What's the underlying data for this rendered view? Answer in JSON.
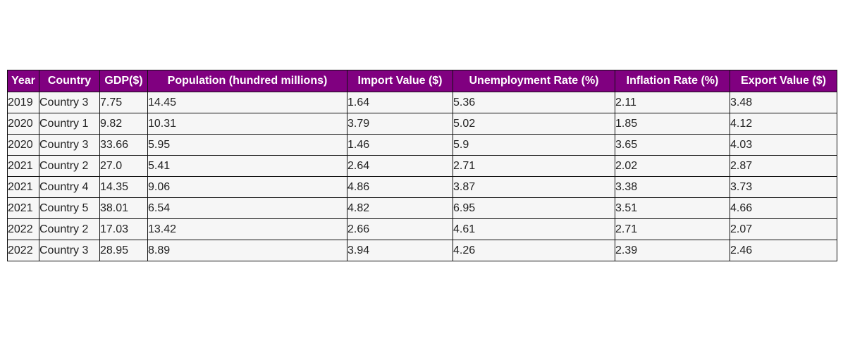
{
  "colors": {
    "header_bg": "#800080",
    "header_text": "#ffffff",
    "cell_bg": "#f6f6f6",
    "cell_text": "#222222",
    "border": "#111111"
  },
  "chart_data": {
    "type": "table",
    "columns": [
      "Year",
      "Country",
      "GDP($)",
      "Population (hundred millions)",
      "Import Value ($)",
      "Unemployment Rate (%)",
      "Inflation Rate (%)",
      "Export Value ($)"
    ],
    "rows": [
      [
        "2019",
        "Country 3",
        "7.75",
        "14.45",
        "1.64",
        "5.36",
        "2.11",
        "3.48"
      ],
      [
        "2020",
        "Country 1",
        "9.82",
        "10.31",
        "3.79",
        "5.02",
        "1.85",
        "4.12"
      ],
      [
        "2020",
        "Country 3",
        "33.66",
        "5.95",
        "1.46",
        "5.9",
        "3.65",
        "4.03"
      ],
      [
        "2021",
        "Country 2",
        "27.0",
        "5.41",
        "2.64",
        "2.71",
        "2.02",
        "2.87"
      ],
      [
        "2021",
        "Country 4",
        "14.35",
        "9.06",
        "4.86",
        "3.87",
        "3.38",
        "3.73"
      ],
      [
        "2021",
        "Country 5",
        "38.01",
        "6.54",
        "4.82",
        "6.95",
        "3.51",
        "4.66"
      ],
      [
        "2022",
        "Country 2",
        "17.03",
        "13.42",
        "2.66",
        "4.61",
        "2.71",
        "2.07"
      ],
      [
        "2022",
        "Country 3",
        "28.95",
        "8.89",
        "3.94",
        "4.26",
        "2.39",
        "2.46"
      ]
    ]
  }
}
